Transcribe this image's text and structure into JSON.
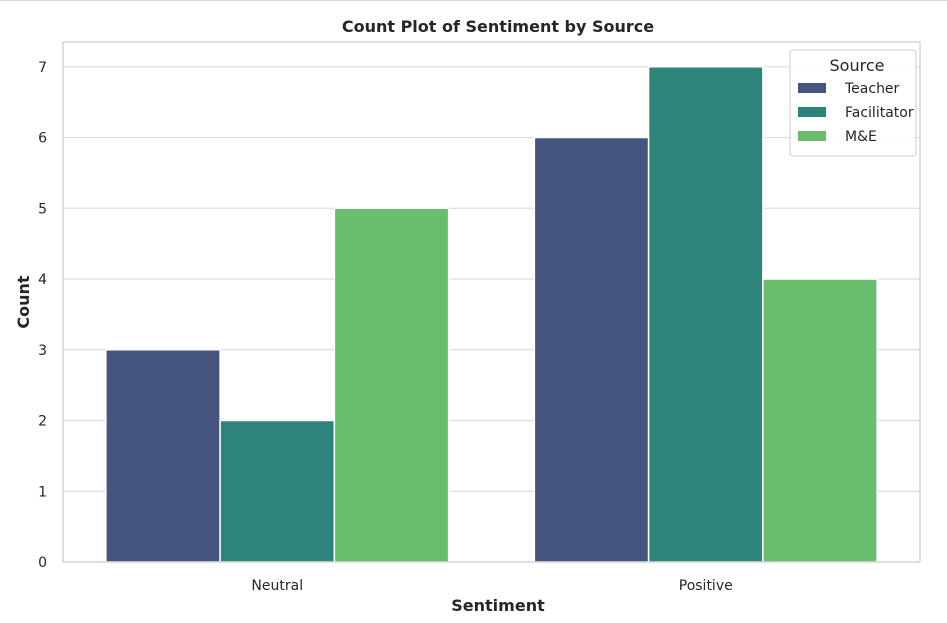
{
  "chart_data": {
    "type": "bar",
    "title": "Count Plot of Sentiment by Source",
    "xlabel": "Sentiment",
    "ylabel": "Count",
    "categories": [
      "Neutral",
      "Positive"
    ],
    "series": [
      {
        "name": "Teacher",
        "color": "#46557f",
        "values": [
          3,
          6
        ]
      },
      {
        "name": "Facilitator",
        "color": "#2e837b",
        "values": [
          2,
          7
        ]
      },
      {
        "name": "M&E",
        "color": "#6bbd6e",
        "values": [
          5,
          4
        ]
      }
    ],
    "ylim": [
      0,
      7.35
    ],
    "yticks": [
      "0",
      "1",
      "2",
      "3",
      "4",
      "5",
      "6",
      "7"
    ],
    "grid": true,
    "legend": {
      "title": "Source",
      "placement": "top-right"
    }
  }
}
